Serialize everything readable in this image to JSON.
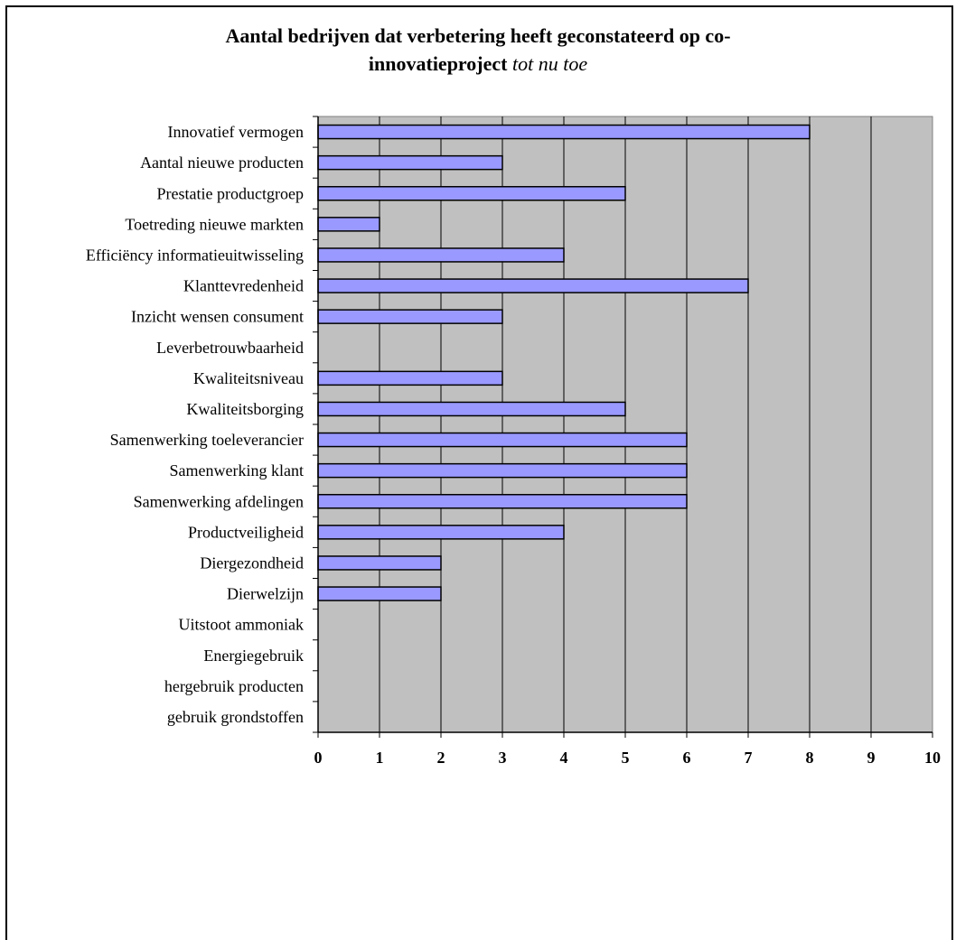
{
  "chart_data": {
    "type": "bar",
    "orientation": "horizontal",
    "title_line1": "Aantal bedrijven dat verbetering heeft geconstateerd op co-",
    "title_line2_bold": "innovatieproject",
    "title_line2_italic": "tot nu toe",
    "categories": [
      "Innovatief vermogen",
      "Aantal nieuwe producten",
      "Prestatie productgroep",
      "Toetreding nieuwe markten",
      "Efficiëncy informatieuitwisseling",
      "Klanttevredenheid",
      "Inzicht wensen consument",
      "Leverbetrouwbaarheid",
      "Kwaliteitsniveau",
      "Kwaliteitsborging",
      "Samenwerking toeleverancier",
      "Samenwerking klant",
      "Samenwerking afdelingen",
      "Productveiligheid",
      "Diergezondheid",
      "Dierwelzijn",
      "Uitstoot ammoniak",
      "Energiegebruik",
      "hergebruik producten",
      "gebruik grondstoffen"
    ],
    "values": [
      8,
      3,
      5,
      1,
      4,
      7,
      3,
      0,
      3,
      5,
      6,
      6,
      6,
      4,
      2,
      2,
      0,
      0,
      0,
      0
    ],
    "xlim": [
      0,
      10
    ],
    "xticks": [
      "0",
      "1",
      "2",
      "3",
      "4",
      "5",
      "6",
      "7",
      "8",
      "9",
      "10"
    ],
    "grid": true,
    "colors": {
      "bar": "#9999ff",
      "bar_border": "#000000",
      "plot_background": "#c0c0c0",
      "gridline": "#000000"
    }
  }
}
